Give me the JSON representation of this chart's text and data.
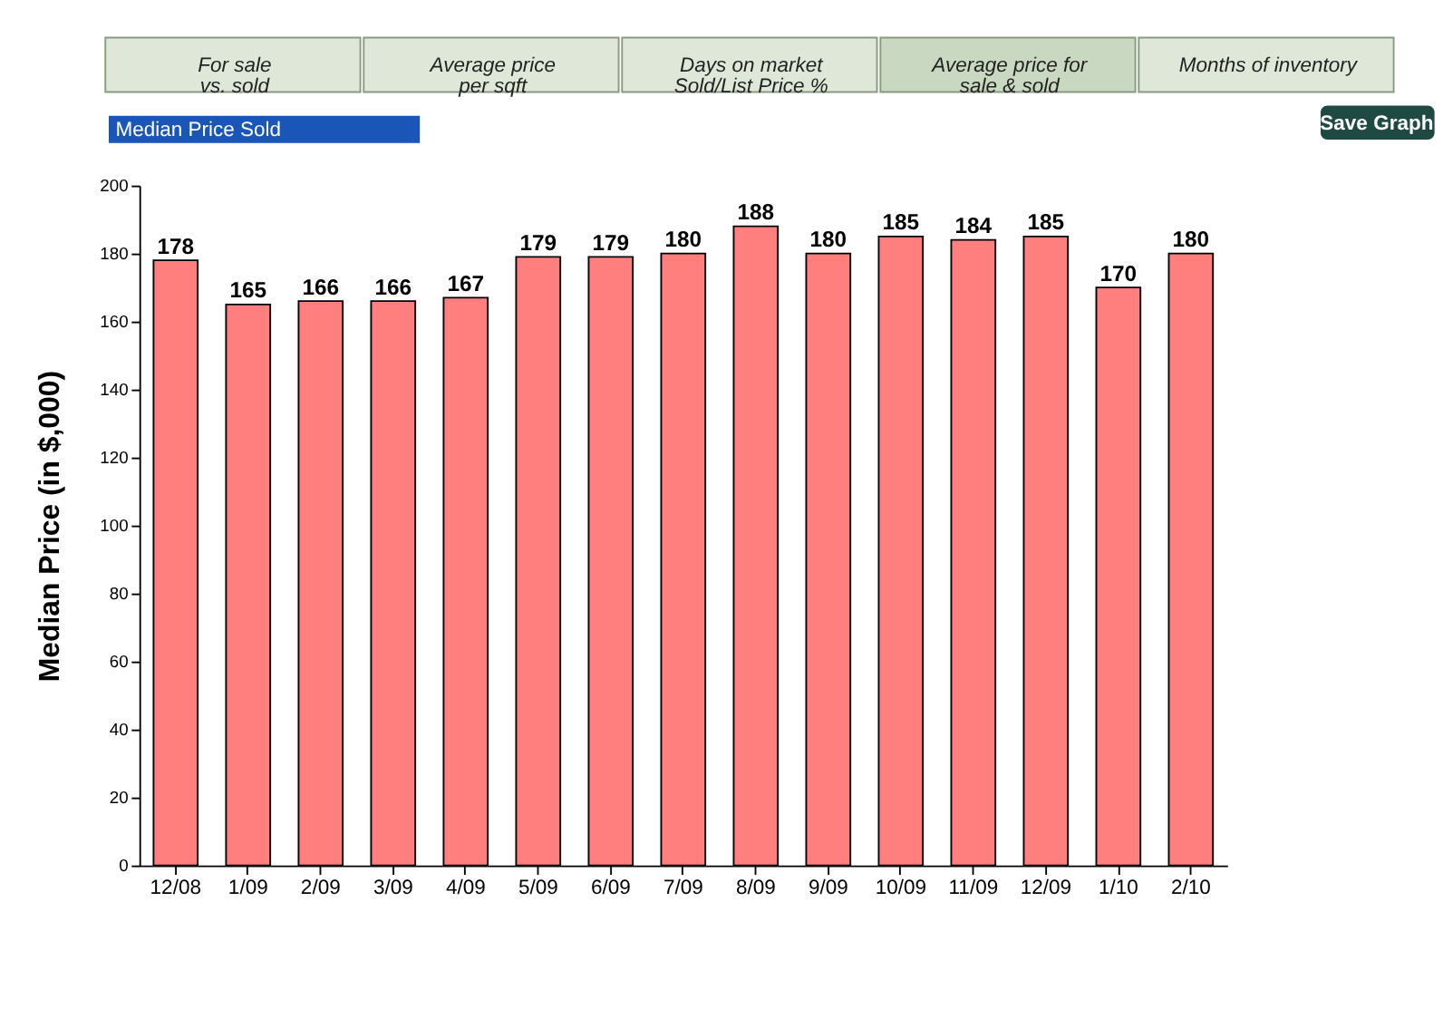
{
  "chart_data": {
    "type": "bar",
    "ylabel": "Median Price (in $,000)",
    "annotations": [
      "For sale vs. sold",
      "Average price per sqft",
      "Days on market Sold/List Price %",
      "Average price for sale & sold",
      "Months of inventory",
      "Median Price Sold",
      "Save Graph"
    ],
    "categories": [
      "12/08",
      "1/09",
      "2/09",
      "3/09",
      "4/09",
      "5/09",
      "6/09",
      "7/09",
      "8/09",
      "9/09",
      "10/09",
      "11/09",
      "12/09",
      "1/10",
      "2/10"
    ],
    "values": [
      178,
      165,
      166,
      166,
      167,
      179,
      179,
      180,
      188,
      180,
      185,
      184,
      185,
      170,
      180
    ],
    "color": "#ff7f7f",
    "ylim": [
      0,
      200
    ],
    "yticks": [
      0,
      20,
      40,
      60,
      80,
      100,
      120,
      140,
      160,
      180,
      200
    ],
    "data_labels": true,
    "grid": false
  }
}
